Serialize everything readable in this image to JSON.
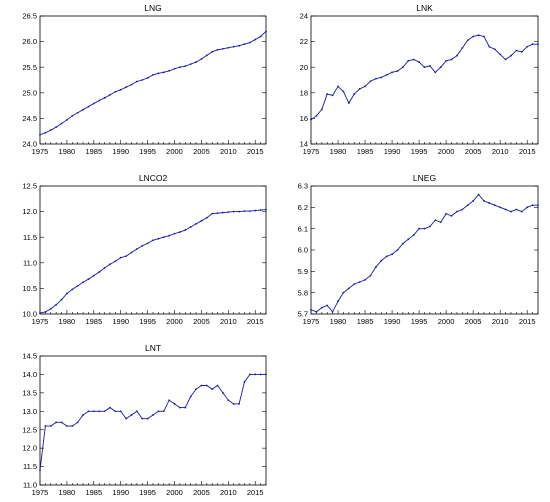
{
  "chart_data": [
    {
      "type": "line",
      "title": "LNG",
      "x": [
        1975,
        1976,
        1977,
        1978,
        1979,
        1980,
        1981,
        1982,
        1983,
        1984,
        1985,
        1986,
        1987,
        1988,
        1989,
        1990,
        1991,
        1992,
        1993,
        1994,
        1995,
        1996,
        1997,
        1998,
        1999,
        2000,
        2001,
        2002,
        2003,
        2004,
        2005,
        2006,
        2007,
        2008,
        2009,
        2010,
        2011,
        2012,
        2013,
        2014,
        2015,
        2016,
        2017
      ],
      "series": [
        {
          "values": [
            24.18,
            24.22,
            24.27,
            24.33,
            24.4,
            24.47,
            24.55,
            24.61,
            24.67,
            24.73,
            24.79,
            24.85,
            24.9,
            24.96,
            25.02,
            25.06,
            25.11,
            25.16,
            25.22,
            25.25,
            25.29,
            25.35,
            25.38,
            25.4,
            25.43,
            25.47,
            25.5,
            25.52,
            25.56,
            25.6,
            25.66,
            25.73,
            25.8,
            25.84,
            25.86,
            25.88,
            25.9,
            25.92,
            25.95,
            25.98,
            26.04,
            26.1,
            26.2
          ]
        }
      ],
      "xticks": [
        "1975",
        "1980",
        "1985",
        "1990",
        "1995",
        "2000",
        "2005",
        "2010",
        "2015"
      ],
      "yticks": [
        "24.0",
        "24.5",
        "25.0",
        "25.5",
        "26.0",
        "26.5"
      ],
      "xlim": [
        1975,
        2017
      ],
      "ylim": [
        24.0,
        26.5
      ],
      "grid": false,
      "line_color": "#1a1aa6"
    },
    {
      "type": "line",
      "title": "LNK",
      "x": [
        1975,
        1976,
        1977,
        1978,
        1979,
        1980,
        1981,
        1982,
        1983,
        1984,
        1985,
        1986,
        1987,
        1988,
        1989,
        1990,
        1991,
        1992,
        1993,
        1994,
        1995,
        1996,
        1997,
        1998,
        1999,
        2000,
        2001,
        2002,
        2003,
        2004,
        2005,
        2006,
        2007,
        2008,
        2009,
        2010,
        2011,
        2012,
        2013,
        2014,
        2015,
        2016,
        2017
      ],
      "series": [
        {
          "values": [
            15.9,
            16.2,
            16.7,
            17.9,
            17.8,
            18.5,
            18.1,
            17.2,
            17.9,
            18.3,
            18.5,
            18.9,
            19.1,
            19.2,
            19.4,
            19.6,
            19.7,
            20.0,
            20.5,
            20.6,
            20.4,
            20.0,
            20.1,
            19.6,
            20.0,
            20.5,
            20.6,
            20.9,
            21.5,
            22.1,
            22.4,
            22.5,
            22.4,
            21.6,
            21.4,
            21.0,
            20.6,
            20.9,
            21.3,
            21.2,
            21.6,
            21.8,
            21.8
          ]
        }
      ],
      "xticks": [
        "1975",
        "1980",
        "1985",
        "1990",
        "1995",
        "2000",
        "2005",
        "2010",
        "2015"
      ],
      "yticks": [
        "14",
        "16",
        "18",
        "20",
        "22",
        "24"
      ],
      "xlim": [
        1975,
        2017
      ],
      "ylim": [
        14,
        24
      ],
      "grid": false,
      "line_color": "#1a1aa6"
    },
    {
      "type": "line",
      "title": "LNCO2",
      "x": [
        1975,
        1976,
        1977,
        1978,
        1979,
        1980,
        1981,
        1982,
        1983,
        1984,
        1985,
        1986,
        1987,
        1988,
        1989,
        1990,
        1991,
        1992,
        1993,
        1994,
        1995,
        1996,
        1997,
        1998,
        1999,
        2000,
        2001,
        2002,
        2003,
        2004,
        2005,
        2006,
        2007,
        2008,
        2009,
        2010,
        2011,
        2012,
        2013,
        2014,
        2015,
        2016,
        2017
      ],
      "series": [
        {
          "values": [
            10.02,
            10.04,
            10.1,
            10.18,
            10.28,
            10.4,
            10.48,
            10.55,
            10.62,
            10.68,
            10.75,
            10.82,
            10.9,
            10.97,
            11.03,
            11.1,
            11.13,
            11.2,
            11.27,
            11.33,
            11.38,
            11.44,
            11.47,
            11.5,
            11.53,
            11.57,
            11.6,
            11.64,
            11.7,
            11.76,
            11.82,
            11.88,
            11.96,
            11.97,
            11.98,
            11.99,
            12.0,
            12.0,
            12.01,
            12.01,
            12.02,
            12.03,
            12.04
          ]
        }
      ],
      "xticks": [
        "1975",
        "1980",
        "1985",
        "1990",
        "1995",
        "2000",
        "2005",
        "2010",
        "2015"
      ],
      "yticks": [
        "10.0",
        "10.5",
        "11.0",
        "11.5",
        "12.0",
        "12.5"
      ],
      "xlim": [
        1975,
        2017
      ],
      "ylim": [
        10.0,
        12.5
      ],
      "grid": false,
      "line_color": "#1a1aa6"
    },
    {
      "type": "line",
      "title": "LNEG",
      "x": [
        1975,
        1976,
        1977,
        1978,
        1979,
        1980,
        1981,
        1982,
        1983,
        1984,
        1985,
        1986,
        1987,
        1988,
        1989,
        1990,
        1991,
        1992,
        1993,
        1994,
        1995,
        1996,
        1997,
        1998,
        1999,
        2000,
        2001,
        2002,
        2003,
        2004,
        2005,
        2006,
        2007,
        2008,
        2009,
        2010,
        2011,
        2012,
        2013,
        2014,
        2015,
        2016,
        2017
      ],
      "series": [
        {
          "values": [
            5.72,
            5.71,
            5.73,
            5.74,
            5.71,
            5.76,
            5.8,
            5.82,
            5.84,
            5.85,
            5.86,
            5.88,
            5.92,
            5.95,
            5.97,
            5.98,
            6.0,
            6.03,
            6.05,
            6.07,
            6.1,
            6.1,
            6.11,
            6.14,
            6.13,
            6.17,
            6.16,
            6.18,
            6.19,
            6.21,
            6.23,
            6.26,
            6.23,
            6.22,
            6.21,
            6.2,
            6.19,
            6.18,
            6.19,
            6.18,
            6.2,
            6.21,
            6.21
          ]
        }
      ],
      "xticks": [
        "1975",
        "1980",
        "1985",
        "1990",
        "1995",
        "2000",
        "2005",
        "2010",
        "2015"
      ],
      "yticks": [
        "5.7",
        "5.8",
        "5.9",
        "6.0",
        "6.1",
        "6.2",
        "6.3"
      ],
      "xlim": [
        1975,
        2017
      ],
      "ylim": [
        5.7,
        6.3
      ],
      "grid": false,
      "line_color": "#1a1aa6"
    },
    {
      "type": "line",
      "title": "LNT",
      "x": [
        1975,
        1976,
        1977,
        1978,
        1979,
        1980,
        1981,
        1982,
        1983,
        1984,
        1985,
        1986,
        1987,
        1988,
        1989,
        1990,
        1991,
        1992,
        1993,
        1994,
        1995,
        1996,
        1997,
        1998,
        1999,
        2000,
        2001,
        2002,
        2003,
        2004,
        2005,
        2006,
        2007,
        2008,
        2009,
        2010,
        2011,
        2012,
        2013,
        2014,
        2015,
        2016,
        2017
      ],
      "series": [
        {
          "values": [
            11.4,
            12.6,
            12.6,
            12.7,
            12.7,
            12.6,
            12.6,
            12.7,
            12.9,
            13.0,
            13.0,
            13.0,
            13.0,
            13.1,
            13.0,
            13.0,
            12.8,
            12.9,
            13.0,
            12.8,
            12.8,
            12.9,
            13.0,
            13.0,
            13.3,
            13.2,
            13.1,
            13.1,
            13.4,
            13.6,
            13.7,
            13.7,
            13.6,
            13.7,
            13.5,
            13.3,
            13.2,
            13.2,
            13.8,
            14.0,
            14.0,
            14.0,
            14.0
          ]
        }
      ],
      "xticks": [
        "1975",
        "1980",
        "1985",
        "1990",
        "1995",
        "2000",
        "2005",
        "2010",
        "2015"
      ],
      "yticks": [
        "11.0",
        "11.5",
        "12.0",
        "12.5",
        "13.0",
        "13.5",
        "14.0",
        "14.5"
      ],
      "xlim": [
        1975,
        2017
      ],
      "ylim": [
        11.0,
        14.5
      ],
      "grid": false,
      "line_color": "#1a1aa6"
    }
  ]
}
